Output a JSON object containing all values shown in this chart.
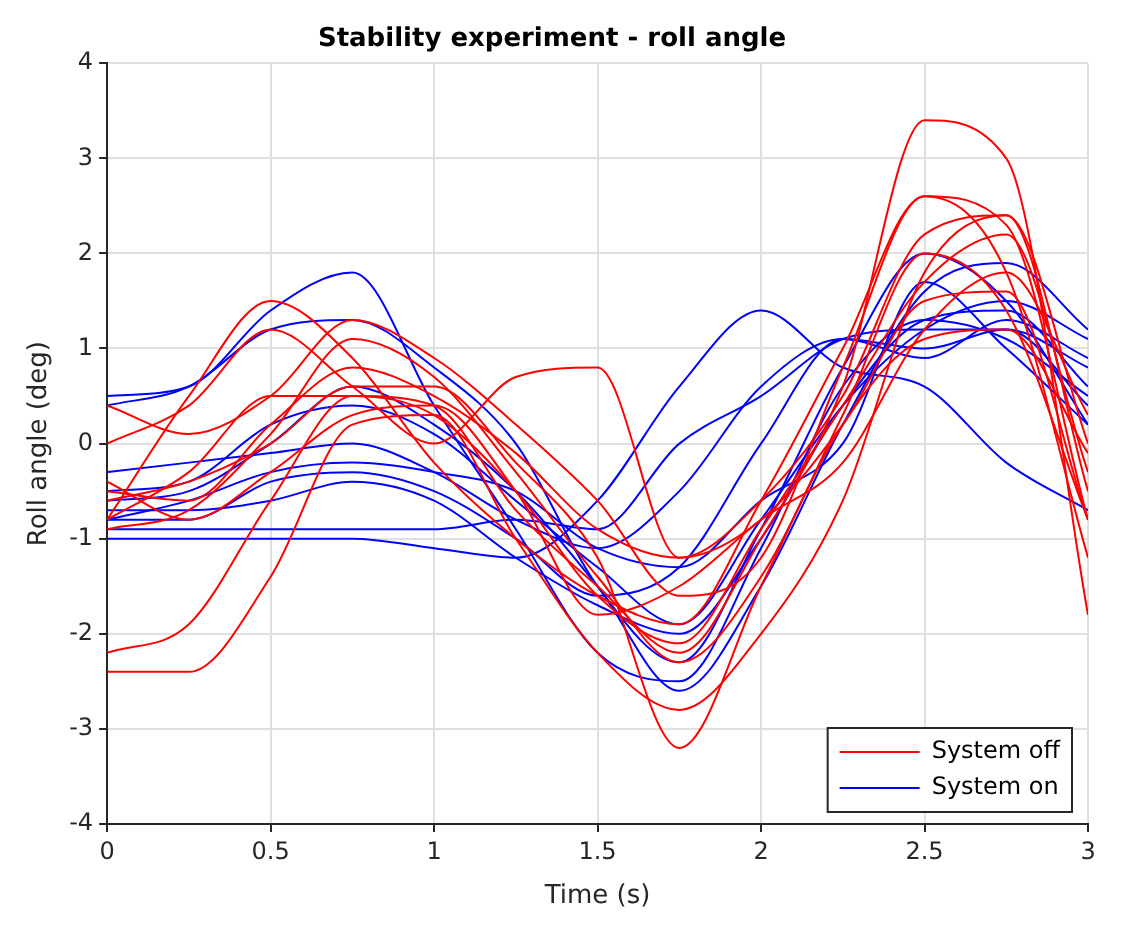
{
  "chart_data": {
    "type": "line",
    "title": "Stability experiment - roll angle",
    "xlabel": "Time (s)",
    "ylabel": "Roll angle (deg)",
    "x": [
      0,
      0.25,
      0.5,
      0.75,
      1,
      1.25,
      1.5,
      1.75,
      2,
      2.25,
      2.5,
      2.75,
      3
    ],
    "xlim": [
      0,
      3
    ],
    "xticks": [
      0,
      0.5,
      1,
      1.5,
      2,
      2.5,
      3
    ],
    "ylim": [
      -4,
      4
    ],
    "yticks": [
      -4,
      -3,
      -2,
      -1,
      0,
      1,
      2,
      3,
      4
    ],
    "grid": true,
    "legend": "bottom right",
    "marker": "none",
    "line_style": "solid",
    "series": [
      {
        "name": "System off",
        "color": "#ff0000",
        "values": [
          -0.8,
          0.5,
          1.5,
          0.9,
          -0.2,
          -1.0,
          -1.6,
          -1.9,
          -0.6,
          1.0,
          2.6,
          2.3,
          -0.8
        ]
      },
      {
        "color": "#ff0000",
        "values": [
          -2.2,
          -1.9,
          -0.6,
          0.5,
          0.4,
          -0.7,
          -1.5,
          -2.2,
          -1.0,
          0.6,
          3.4,
          3.0,
          -1.8
        ]
      },
      {
        "color": "#ff0000",
        "values": [
          -2.4,
          -2.4,
          -1.4,
          0.2,
          0.3,
          -1.0,
          -2.2,
          -2.8,
          -2.0,
          -0.6,
          1.8,
          2.4,
          -0.5
        ]
      },
      {
        "color": "#ff0000",
        "values": [
          0.4,
          0.1,
          0.5,
          1.3,
          0.9,
          0.2,
          -0.6,
          -1.6,
          -1.2,
          0.8,
          2.6,
          1.8,
          -1.2
        ]
      },
      {
        "color": "#ff0000",
        "values": [
          -0.5,
          -0.6,
          0.2,
          0.8,
          0.5,
          -0.1,
          -0.9,
          -1.2,
          -0.6,
          0.5,
          2.2,
          2.4,
          0.0
        ]
      },
      {
        "color": "#ff0000",
        "values": [
          -0.8,
          -0.3,
          0.5,
          0.5,
          0.3,
          -0.5,
          -1.6,
          -2.1,
          -0.9,
          0.4,
          1.7,
          2.2,
          -0.3
        ]
      },
      {
        "color": "#ff0000",
        "values": [
          0.0,
          0.4,
          1.2,
          0.6,
          0.0,
          0.7,
          0.8,
          -1.2,
          -0.8,
          0.2,
          1.5,
          1.6,
          -0.8
        ]
      },
      {
        "color": "#ff0000",
        "values": [
          -0.6,
          -0.4,
          0.0,
          0.6,
          0.6,
          -0.2,
          -1.2,
          -3.2,
          -1.5,
          0.2,
          1.1,
          1.2,
          -0.1
        ]
      },
      {
        "color": "#ff0000",
        "values": [
          -0.4,
          -0.8,
          -0.3,
          0.3,
          0.4,
          -0.5,
          -1.8,
          -1.5,
          -0.8,
          -0.2,
          1.2,
          1.8,
          0.3
        ]
      },
      {
        "color": "#ff0000",
        "values": [
          -0.9,
          -0.7,
          0.1,
          1.1,
          0.7,
          -0.3,
          -1.4,
          -2.3,
          -1.4,
          0.3,
          2.0,
          1.4,
          -0.8
        ]
      },
      {
        "name": "System on",
        "color": "#0000ff",
        "values": [
          0.5,
          0.6,
          1.4,
          1.8,
          0.4,
          -0.9,
          -2.2,
          -2.5,
          -1.1,
          0.6,
          1.3,
          1.1,
          0.5
        ]
      },
      {
        "color": "#0000ff",
        "values": [
          0.4,
          0.6,
          1.2,
          1.3,
          0.8,
          0.0,
          -1.5,
          -2.3,
          -0.9,
          0.8,
          2.0,
          1.5,
          0.2
        ]
      },
      {
        "color": "#0000ff",
        "values": [
          -0.3,
          -0.2,
          -0.1,
          0.0,
          -0.3,
          -0.8,
          -1.1,
          -0.5,
          0.6,
          1.1,
          1.0,
          1.2,
          0.8
        ]
      },
      {
        "color": "#0000ff",
        "values": [
          -0.5,
          -0.4,
          0.2,
          0.4,
          0.1,
          -0.6,
          -1.3,
          -1.9,
          -0.8,
          0.4,
          1.2,
          1.5,
          1.1
        ]
      },
      {
        "color": "#0000ff",
        "values": [
          -0.6,
          -0.5,
          0.0,
          0.6,
          0.2,
          -0.5,
          -1.5,
          -2.6,
          -1.5,
          0.2,
          1.6,
          1.9,
          1.2
        ]
      },
      {
        "color": "#0000ff",
        "values": [
          -0.8,
          -0.8,
          -0.4,
          -0.3,
          -0.5,
          -1.0,
          -1.6,
          -1.3,
          0.0,
          1.1,
          0.9,
          1.3,
          0.9
        ]
      },
      {
        "color": "#0000ff",
        "values": [
          -1.0,
          -1.0,
          -1.0,
          -1.0,
          -1.1,
          -1.2,
          -0.6,
          0.6,
          1.4,
          0.8,
          0.6,
          -0.2,
          -0.7
        ]
      },
      {
        "color": "#0000ff",
        "values": [
          -0.7,
          -0.7,
          -0.6,
          -0.4,
          -0.6,
          -1.2,
          -1.7,
          -2.0,
          -1.0,
          0.4,
          1.3,
          1.4,
          0.6
        ]
      },
      {
        "color": "#0000ff",
        "values": [
          -0.9,
          -0.9,
          -0.9,
          -0.9,
          -0.9,
          -0.8,
          -0.9,
          0.0,
          0.5,
          1.1,
          1.2,
          1.2,
          0.4
        ]
      },
      {
        "color": "#0000ff",
        "values": [
          -0.8,
          -0.6,
          -0.3,
          -0.2,
          -0.3,
          -0.5,
          -1.1,
          -1.3,
          -0.6,
          0.0,
          1.7,
          1.0,
          0.2
        ]
      }
    ]
  }
}
